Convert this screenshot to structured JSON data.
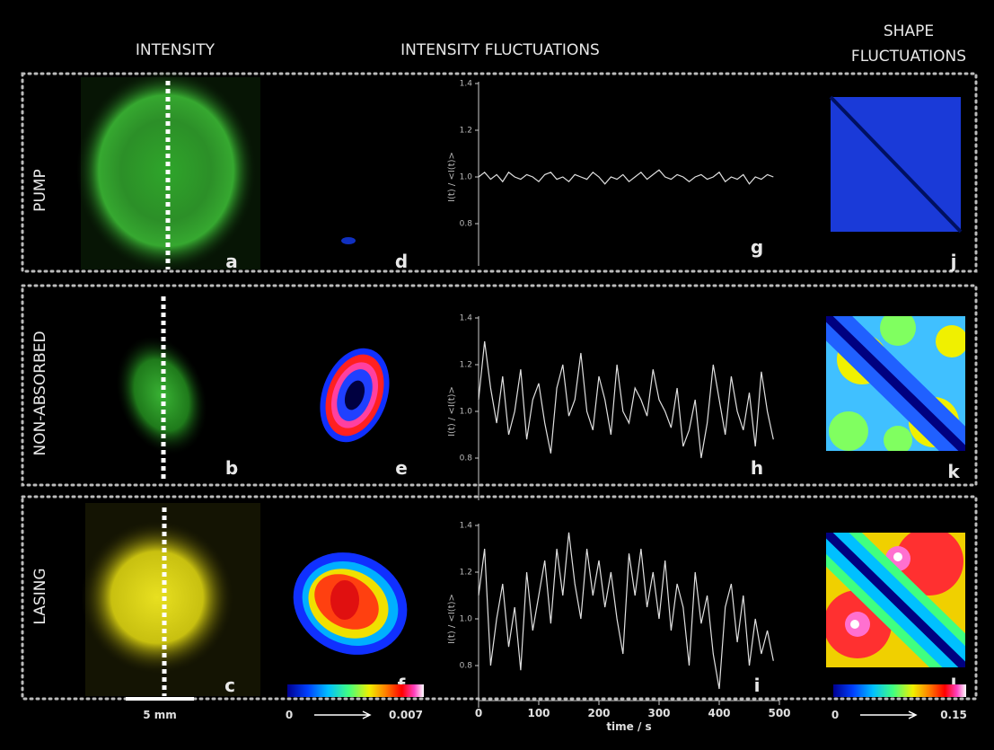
{
  "headers": [
    "INTENSITY",
    "INTENSITY FLUCTUATIONS",
    [
      "SHAPE",
      "FLUCTUATIONS"
    ]
  ],
  "rows": [
    {
      "label": "PUMP",
      "panels": [
        "a",
        "d",
        "g",
        "j"
      ]
    },
    {
      "label": "NON-ABSORBED",
      "panels": [
        "b",
        "e",
        "h",
        "k"
      ]
    },
    {
      "label": "LASING",
      "panels": [
        "c",
        "f",
        "i",
        "l"
      ]
    }
  ],
  "scale_bar": "5 mm",
  "colorbars": [
    {
      "min": 0,
      "max": 0.007
    },
    {
      "min": 0,
      "max": 0.15
    }
  ],
  "chart_data": [
    {
      "type": "line",
      "ylabel": "I(t) / <I(t)>",
      "xlim": [
        0,
        500
      ],
      "ylim": [
        0.65,
        1.4
      ],
      "yticks": [
        0.8,
        {
          "value": 1,
          "label": "1.0"
        },
        1.2,
        1.4
      ],
      "color": "#e0e0e0",
      "x": [
        0,
        10,
        20,
        30,
        40,
        50,
        60,
        70,
        80,
        90,
        100,
        110,
        120,
        130,
        140,
        150,
        160,
        170,
        180,
        190,
        200,
        210,
        220,
        230,
        240,
        250,
        260,
        270,
        280,
        290,
        300,
        310,
        320,
        330,
        340,
        350,
        360,
        370,
        380,
        390,
        400,
        410,
        420,
        430,
        440,
        450,
        460,
        470,
        480,
        490
      ],
      "values": [
        1.0,
        1.02,
        0.99,
        1.01,
        0.98,
        1.02,
        1.0,
        0.99,
        1.01,
        1.0,
        0.98,
        1.01,
        1.02,
        0.99,
        1.0,
        0.98,
        1.01,
        1.0,
        0.99,
        1.02,
        1.0,
        0.97,
        1.0,
        0.99,
        1.01,
        0.98,
        1.0,
        1.02,
        0.99,
        1.01,
        1.03,
        1.0,
        0.99,
        1.01,
        1.0,
        0.98,
        1.0,
        1.01,
        0.99,
        1.0,
        1.02,
        0.98,
        1.0,
        0.99,
        1.01,
        0.97,
        1.0,
        0.99,
        1.01,
        1.0
      ]
    },
    {
      "type": "line",
      "ylabel": "I(t) / <I(t)>",
      "xlim": [
        0,
        500
      ],
      "ylim": [
        0.65,
        1.4
      ],
      "yticks": [
        0.8,
        {
          "value": 1,
          "label": "1.0"
        },
        1.2,
        1.4
      ],
      "color": "#e0e0e0",
      "x": [
        0,
        10,
        20,
        30,
        40,
        50,
        60,
        70,
        80,
        90,
        100,
        110,
        120,
        130,
        140,
        150,
        160,
        170,
        180,
        190,
        200,
        210,
        220,
        230,
        240,
        250,
        260,
        270,
        280,
        290,
        300,
        310,
        320,
        330,
        340,
        350,
        360,
        370,
        380,
        390,
        400,
        410,
        420,
        430,
        440,
        450,
        460,
        470,
        480,
        490
      ],
      "values": [
        1.05,
        1.3,
        1.1,
        0.95,
        1.15,
        0.9,
        1.0,
        1.18,
        0.88,
        1.05,
        1.12,
        0.95,
        0.82,
        1.1,
        1.2,
        0.98,
        1.05,
        1.25,
        1.0,
        0.92,
        1.15,
        1.05,
        0.9,
        1.2,
        1.0,
        0.95,
        1.1,
        1.05,
        0.98,
        1.18,
        1.05,
        1.0,
        0.93,
        1.1,
        0.85,
        0.92,
        1.05,
        0.8,
        0.95,
        1.2,
        1.05,
        0.9,
        1.15,
        1.0,
        0.92,
        1.08,
        0.85,
        1.17,
        1.0,
        0.88
      ]
    },
    {
      "type": "line",
      "ylabel": "I(t) / <I(t)>",
      "xlabel": "time / s",
      "xlim": [
        0,
        500
      ],
      "ylim": [
        0.65,
        1.4
      ],
      "xticks": [
        0,
        100,
        200,
        300,
        400,
        500
      ],
      "yticks": [
        0.8,
        {
          "value": 1,
          "label": "1.0"
        },
        1.2,
        1.4
      ],
      "color": "#e0e0e0",
      "x": [
        0,
        10,
        20,
        30,
        40,
        50,
        60,
        70,
        80,
        90,
        100,
        110,
        120,
        130,
        140,
        150,
        160,
        170,
        180,
        190,
        200,
        210,
        220,
        230,
        240,
        250,
        260,
        270,
        280,
        290,
        300,
        310,
        320,
        330,
        340,
        350,
        360,
        370,
        380,
        390,
        400,
        410,
        420,
        430,
        440,
        450,
        460,
        470,
        480,
        490
      ],
      "values": [
        1.1,
        1.3,
        0.8,
        1.0,
        1.15,
        0.88,
        1.05,
        0.78,
        1.2,
        0.95,
        1.1,
        1.25,
        0.98,
        1.3,
        1.1,
        1.37,
        1.15,
        1.0,
        1.3,
        1.1,
        1.25,
        1.05,
        1.2,
        1.0,
        0.85,
        1.28,
        1.1,
        1.3,
        1.05,
        1.2,
        1.0,
        1.25,
        0.95,
        1.15,
        1.05,
        0.8,
        1.2,
        0.98,
        1.1,
        0.85,
        0.7,
        1.05,
        1.15,
        0.9,
        1.1,
        0.8,
        1.0,
        0.85,
        0.95,
        0.82
      ]
    }
  ]
}
